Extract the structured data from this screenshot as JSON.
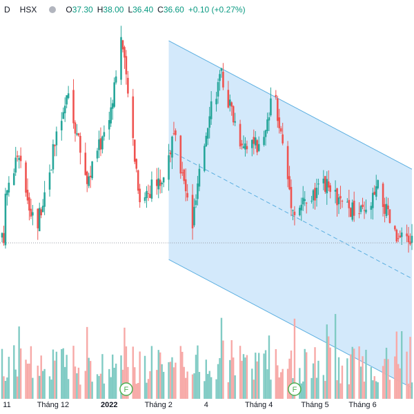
{
  "legend": {
    "interval": "D",
    "exchange": "HSX",
    "open_label": "O",
    "open": "37.30",
    "high_label": "H",
    "high": "38.00",
    "low_label": "L",
    "low": "36.40",
    "close_label": "C",
    "close": "36.60",
    "change": "+0.10 (+0.27%)"
  },
  "colors": {
    "up": "#26a69a",
    "down": "#ef5350",
    "up_volume": "#80cbc4",
    "down_volume": "#f7a9a7",
    "channel_fill": "#d3e9fb",
    "channel_line": "#5aaee0",
    "price_line": "#9598a1",
    "event_marker": "#4caf50",
    "legend_value": "#089981"
  },
  "x_axis_labels": [
    "11",
    "Tháng 12",
    "2022",
    "Tháng 2",
    "4",
    "Tháng 4",
    "Tháng 5",
    "Tháng 6"
  ],
  "event_markers": [
    {
      "label": "F",
      "date": "2022-01-13"
    },
    {
      "label": "F",
      "date": "2022-04-22"
    }
  ],
  "chart_data": {
    "type": "candlestick",
    "date_range": [
      "2021-11-01",
      "2022-06-30"
    ],
    "price_ylim": [
      31,
      46
    ],
    "current_price": 36.6,
    "channel": {
      "upper_start": {
        "date": "2022-02-07",
        "price": 45.1
      },
      "upper_end": {
        "date": "2022-06-30",
        "price": 39.7
      },
      "width": 9.2
    },
    "monthly_range": [
      {
        "month": "2021-11",
        "low": 36.9,
        "high": 40.6
      },
      {
        "month": "2021-12",
        "low": 38.9,
        "high": 43.1
      },
      {
        "month": "2022-01",
        "low": 38.2,
        "high": 45.6
      },
      {
        "month": "2022-02",
        "low": 37.1,
        "high": 41.4
      },
      {
        "month": "2022-03",
        "low": 40.7,
        "high": 43.9
      },
      {
        "month": "2022-04",
        "low": 37.7,
        "high": 43.3
      },
      {
        "month": "2022-05",
        "low": 37.8,
        "high": 39.3
      },
      {
        "month": "2022-06",
        "low": 36.4,
        "high": 39.2
      }
    ]
  }
}
